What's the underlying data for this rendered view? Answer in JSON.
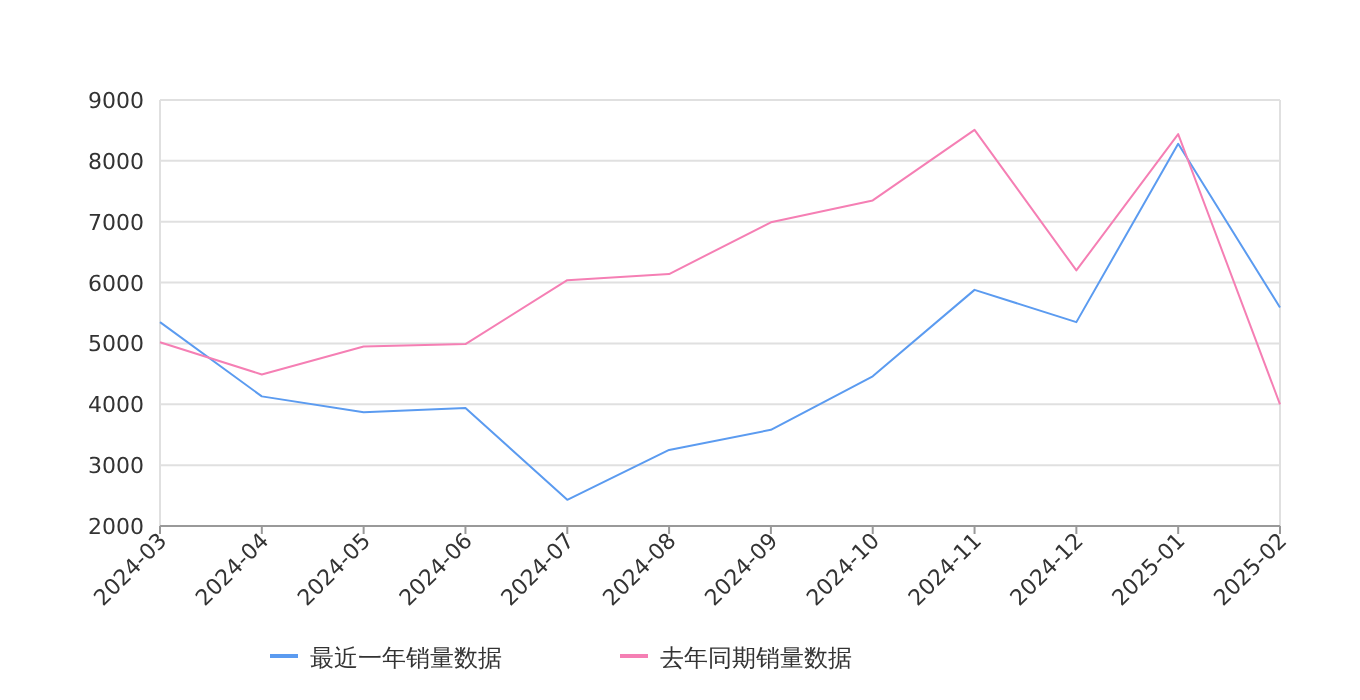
{
  "chart_data": {
    "type": "line",
    "categories": [
      "2024-03",
      "2024-04",
      "2024-05",
      "2024-06",
      "2024-07",
      "2024-08",
      "2024-09",
      "2024-10",
      "2024-11",
      "2024-12",
      "2025-01",
      "2025-02"
    ],
    "series": [
      {
        "name": "最近一年销量数据",
        "color": "#5b9bf0",
        "values": [
          5350,
          4130,
          3870,
          3940,
          2430,
          3250,
          3580,
          4460,
          5880,
          5350,
          8280,
          5590
        ]
      },
      {
        "name": "去年同期销量数据",
        "color": "#f57fb4",
        "values": [
          5020,
          4490,
          4950,
          4990,
          6040,
          6140,
          6990,
          7350,
          8510,
          6200,
          8440,
          4000
        ]
      }
    ],
    "ylim": [
      2000,
      9000
    ],
    "yticks": [
      2000,
      3000,
      4000,
      5000,
      6000,
      7000,
      8000,
      9000
    ],
    "grid": "y",
    "legend": "bottom"
  }
}
